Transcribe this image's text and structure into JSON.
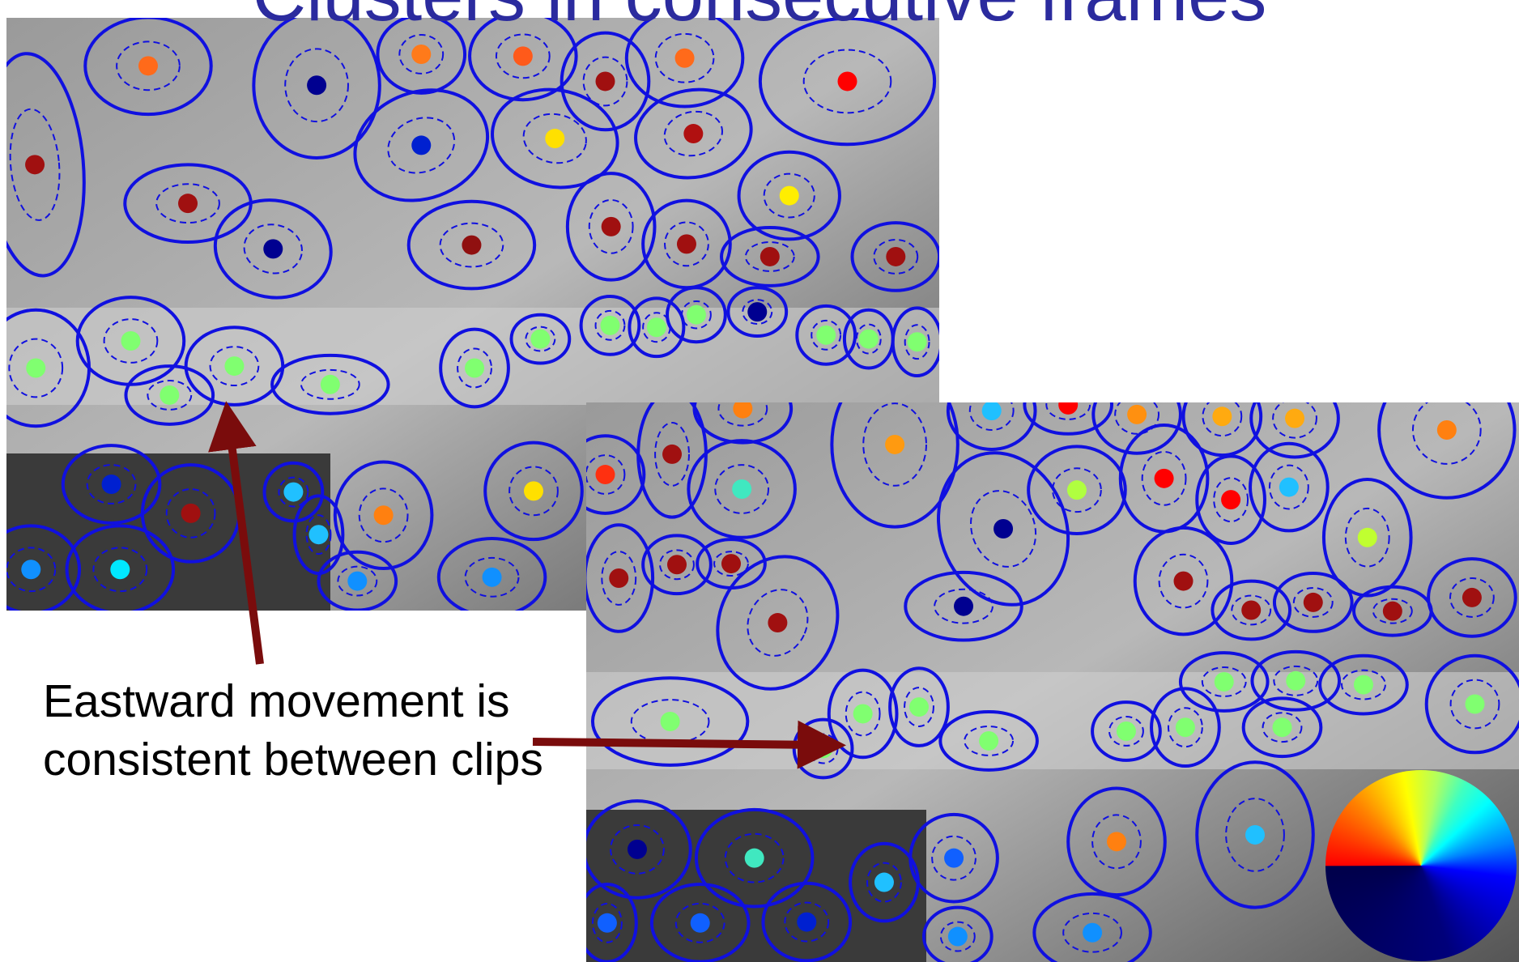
{
  "title": "Clusters in consecutive frames",
  "annotation": "Eastward movement is consistent between clips"
}
